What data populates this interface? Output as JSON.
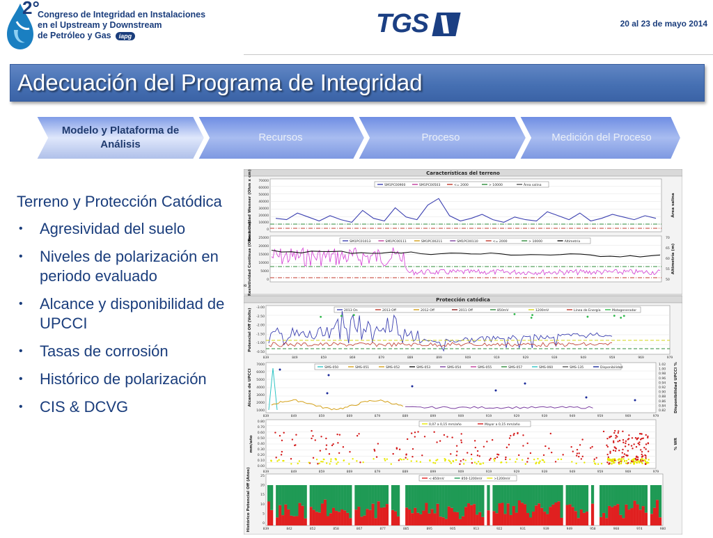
{
  "header": {
    "conference_number": "2°",
    "conference_lines": [
      "Congreso de Integridad en Instalaciones",
      "en el Upstream y Downstream",
      "de Petróleo y Gas"
    ],
    "conference_badge": "iapg",
    "company_logo": "TGS",
    "date": "20 al 23 de mayo 2014"
  },
  "title": "Adecuación del Programa de Integridad",
  "process_steps": [
    {
      "label": "Modelo y Plataforma de Análisis",
      "active": true
    },
    {
      "label": "Recursos",
      "active": false
    },
    {
      "label": "Proceso",
      "active": false
    },
    {
      "label": "Medición del Proceso",
      "active": false
    }
  ],
  "content": {
    "subheading": "Terreno y Protección Catódica",
    "bullets": [
      "Agresividad del suelo",
      "Niveles de polarización en periodo evaluado",
      "Alcance y disponibilidad de UPCCI",
      "Tasas de corrosión",
      "Histórico de polarización",
      "CIS & DCVG"
    ]
  },
  "dashboard": {
    "terrain_title": "Características del terreno",
    "cathodic_title": "Protección catódica",
    "panel1": {
      "ylabel": "Resistividad Wenner (Ohm x cm)",
      "y2label": "Área salina",
      "yticks": [
        "70000",
        "60000",
        "50000",
        "40000",
        "30000",
        "20000",
        "10000",
        "0"
      ],
      "legend": [
        "SM1PC00900",
        "SM1PC00503",
        "<= 2000",
        "> 10000",
        "Área salina"
      ]
    },
    "panel2": {
      "ylabel": "Resistividad Continua (Ohm x cm)",
      "y2label": "Altimetría (m)",
      "yticks": [
        "25000",
        "20000",
        "15000",
        "10000",
        "5000",
        "0"
      ],
      "y2ticks": [
        "70",
        "65",
        "60",
        "55",
        "50"
      ],
      "legend": [
        "SM1PC01013",
        "SM1PC00111",
        "SM1PC00211",
        "SM1PC00110",
        "<= 2000",
        "> 10000",
        "Altimetría"
      ],
      "xticks": [
        "850",
        "890"
      ]
    },
    "panel3": {
      "ylabel": "Potencial Off (Volts)",
      "yticks": [
        "-3.00",
        "-2.50",
        "-2.00",
        "-1.50",
        "-1.00",
        "-0.50"
      ],
      "legend": [
        "2013 On",
        "2013 Off",
        "2012 Off",
        "2011 Off",
        "850mV",
        "1200mV",
        "Línea de Energía",
        "Motogenerador"
      ],
      "xticks": [
        "839",
        "849",
        "859",
        "869",
        "879",
        "889",
        "899",
        "909",
        "919",
        "929",
        "939",
        "949",
        "959",
        "969",
        "979"
      ]
    },
    "panel4": {
      "ylabel": "Alcance de UPCCI",
      "y2label": "Disponibilidad UPCCI %",
      "yticks": [
        "7000",
        "6000",
        "5000",
        "4000",
        "3000",
        "2000",
        "1000"
      ],
      "y2ticks": [
        "1.02",
        "1.00",
        "0.98",
        "0.96",
        "0.94",
        "0.92",
        "0.90",
        "0.88",
        "0.86",
        "0.84",
        "0.82"
      ],
      "legend": [
        "SMS-050",
        "SMS-051",
        "SMS-052",
        "SMS-053",
        "SMS-054",
        "SMS-055",
        "SMS-057",
        "SMS-060",
        "SMS-135",
        "Disponibilidad"
      ],
      "xticks": [
        "839",
        "849",
        "859",
        "869",
        "879",
        "889",
        "899",
        "909",
        "919",
        "929",
        "939",
        "949",
        "959",
        "969",
        "979"
      ]
    },
    "panel5": {
      "ylabel": "mm/año",
      "y2label": "% WR",
      "yticks": [
        "0.80",
        "0.70",
        "0.60",
        "0.50",
        "0.40",
        "0.30",
        "0.20",
        "0.10",
        "0.00"
      ],
      "legend": [
        "0,07 a 0,15 mm/año",
        "Mayor a 0,15 mm/año"
      ],
      "xticks": [
        "839",
        "849",
        "859",
        "869",
        "879",
        "889",
        "899",
        "909",
        "919",
        "929",
        "939",
        "949",
        "959",
        "969",
        "979"
      ]
    },
    "panel6": {
      "ylabel": "Histórico Potencial Off (Años)",
      "yticks": [
        "25",
        "20",
        "15",
        "10",
        "5",
        "0"
      ],
      "legend": [
        "<-850mV",
        "850-1200mV",
        ">1200mV"
      ],
      "xticks": [
        "839",
        "842",
        "852",
        "858",
        "867",
        "877",
        "885",
        "895",
        "905",
        "913",
        "922",
        "931",
        "939",
        "949",
        "958",
        "968",
        "974",
        "980"
      ]
    }
  },
  "colors": {
    "brand_blue": "#1a3d7c",
    "title_bar": "#4670b3",
    "process_active": "#c7d4f0",
    "process_inactive": "#7f9be0"
  }
}
